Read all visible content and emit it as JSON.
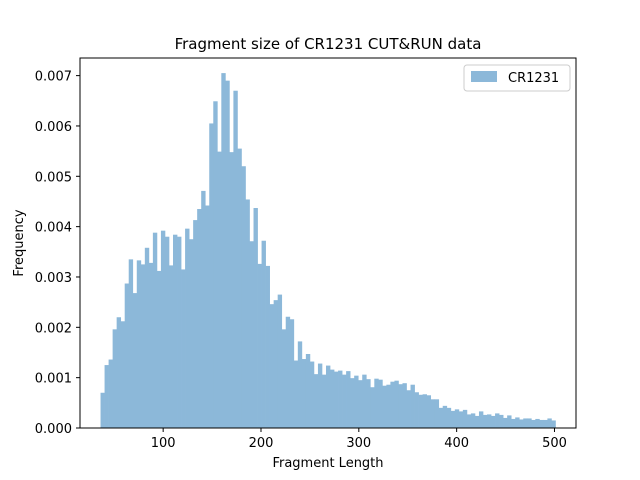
{
  "chart_data": {
    "type": "bar",
    "title": "Fragment size of CR1231 CUT&RUN data",
    "xlabel": "Fragment Length",
    "ylabel": "Frequency",
    "xlim": [
      15,
      522
    ],
    "ylim": [
      0,
      0.00735
    ],
    "x_ticks": [
      100,
      200,
      300,
      400,
      500
    ],
    "y_ticks": [
      0.0,
      0.001,
      0.002,
      0.003,
      0.004,
      0.005,
      0.006,
      0.007
    ],
    "x_tick_labels": [
      "100",
      "200",
      "300",
      "400",
      "500"
    ],
    "y_tick_labels": [
      "0.000",
      "0.001",
      "0.002",
      "0.003",
      "0.004",
      "0.005",
      "0.006",
      "0.007"
    ],
    "legend_position": "top-right",
    "color": "#8cb8d9",
    "grid": false,
    "bin_start": 36,
    "bin_end": 501,
    "series": [
      {
        "name": "CR1231",
        "values": [
          0.0007,
          0.00125,
          0.00136,
          0.00196,
          0.0022,
          0.00212,
          0.00287,
          0.00335,
          0.00268,
          0.00333,
          0.00325,
          0.00358,
          0.00328,
          0.00388,
          0.00312,
          0.00392,
          0.0038,
          0.00323,
          0.00384,
          0.0038,
          0.00315,
          0.00396,
          0.00375,
          0.00413,
          0.00435,
          0.00471,
          0.00442,
          0.00605,
          0.00649,
          0.00549,
          0.00705,
          0.0069,
          0.00548,
          0.0067,
          0.00555,
          0.0052,
          0.00454,
          0.00371,
          0.00437,
          0.00326,
          0.00372,
          0.00322,
          0.00246,
          0.00254,
          0.00265,
          0.00196,
          0.00221,
          0.00216,
          0.00134,
          0.00172,
          0.00137,
          0.00147,
          0.00132,
          0.00107,
          0.00128,
          0.00106,
          0.00124,
          0.00116,
          0.00112,
          0.00114,
          0.00106,
          0.00113,
          0.00099,
          0.00104,
          0.00095,
          0.00106,
          0.00097,
          0.00081,
          0.00098,
          0.00096,
          0.00084,
          0.00086,
          0.00092,
          0.00094,
          0.00087,
          0.00089,
          0.00075,
          0.00086,
          0.00071,
          0.00066,
          0.00067,
          0.00065,
          0.00057,
          0.00057,
          0.0004,
          0.00044,
          0.0004,
          0.00034,
          0.00037,
          0.00033,
          0.00036,
          0.00027,
          0.00029,
          0.00024,
          0.00033,
          0.00026,
          0.00027,
          0.00024,
          0.00029,
          0.00026,
          0.0002,
          0.00025,
          0.00018,
          0.00021,
          0.00017,
          0.00019,
          0.00019,
          0.00016,
          0.00018,
          0.00016,
          0.00016,
          0.00019,
          0.00015
        ]
      }
    ]
  }
}
